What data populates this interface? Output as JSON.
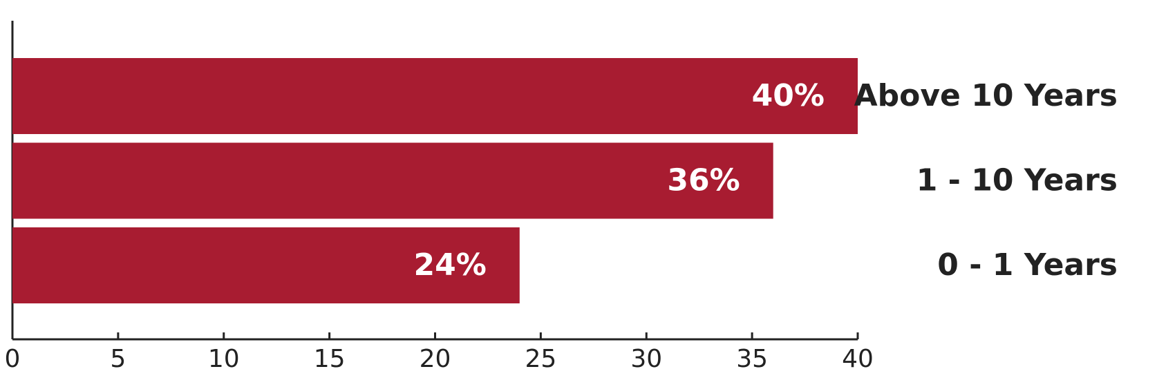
{
  "chart_data": {
    "type": "bar",
    "orientation": "horizontal",
    "categories": [
      "Above 10 Years",
      "1 - 10 Years",
      "0 - 1 Years"
    ],
    "values": [
      40,
      36,
      24
    ],
    "value_labels": [
      "40%",
      "36%",
      "24%"
    ],
    "color": "#a81c31",
    "xlim": [
      0,
      40
    ],
    "xticks": [
      0,
      5,
      10,
      15,
      20,
      25,
      30,
      35,
      40
    ],
    "grid": false
  }
}
